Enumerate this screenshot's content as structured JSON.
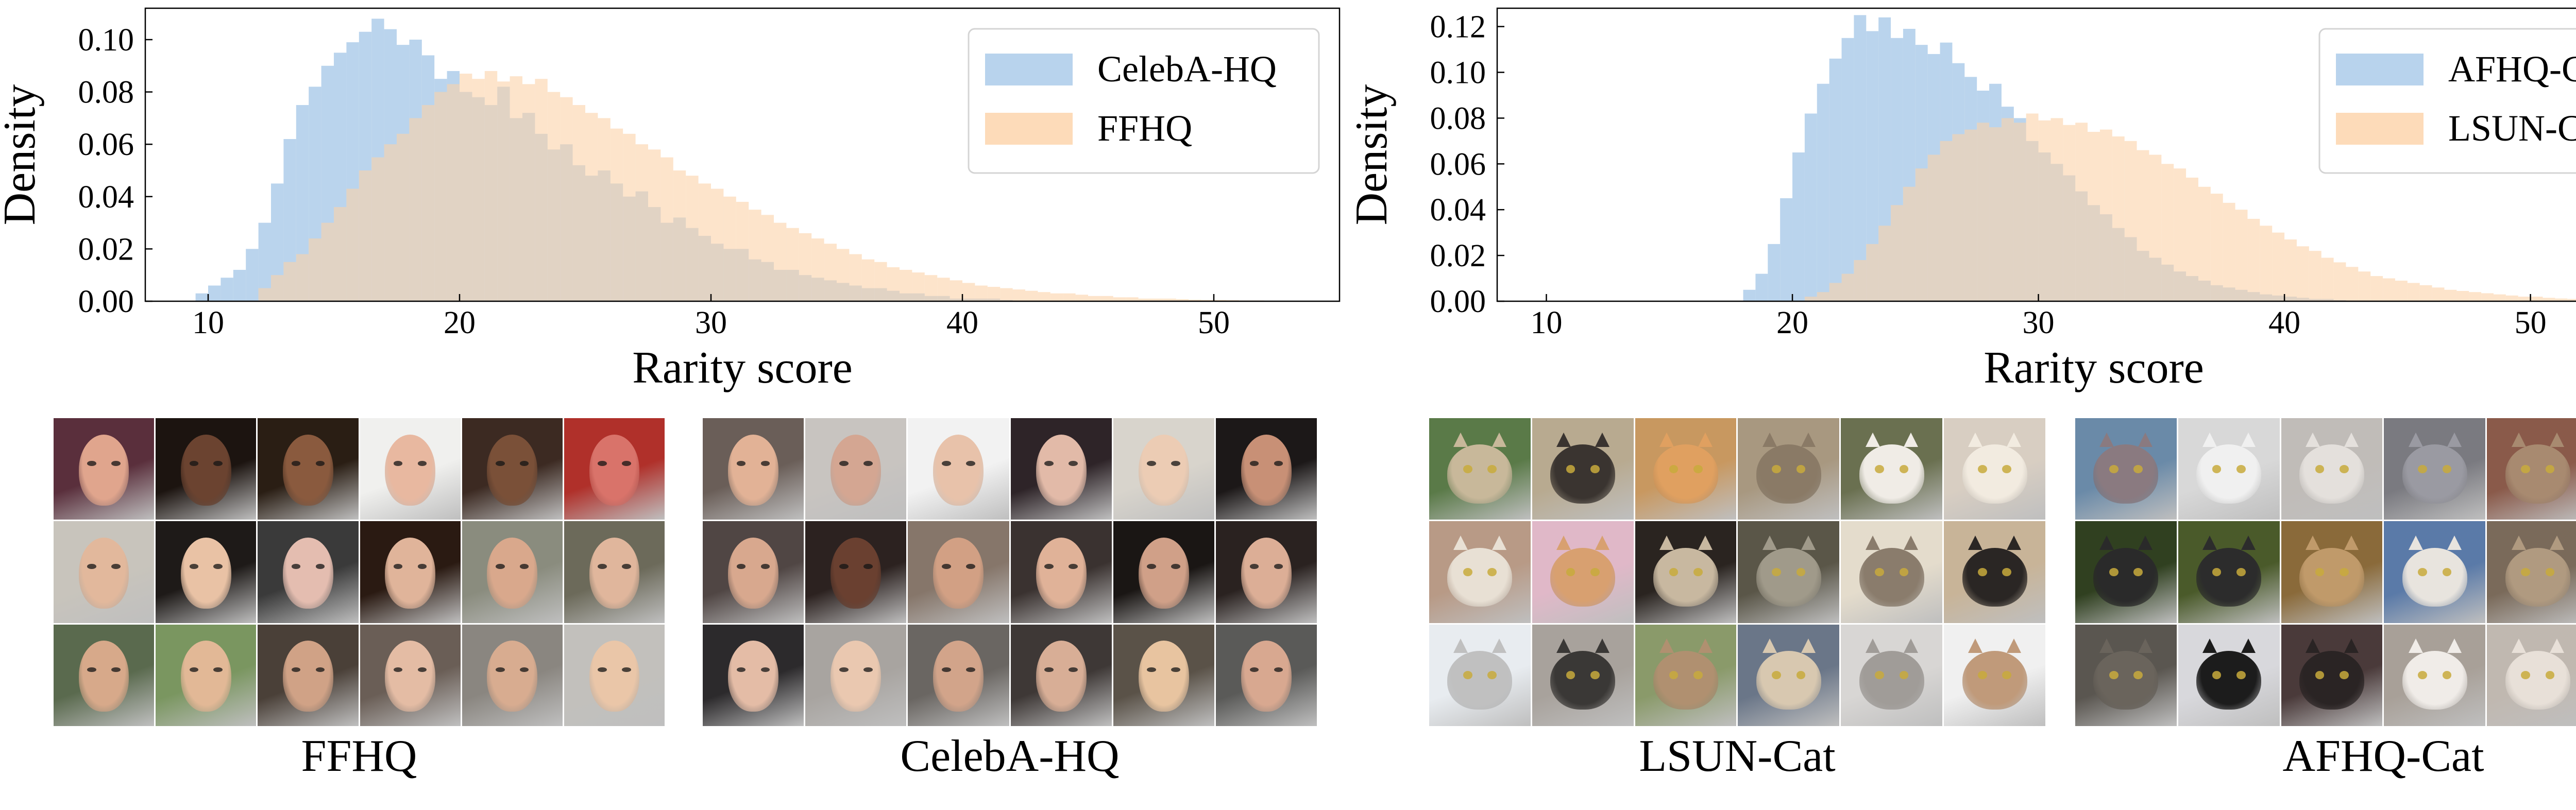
{
  "chart_data": [
    {
      "type": "histogram",
      "xlabel": "Rarity score",
      "ylabel": "Density",
      "xlim": [
        7.5,
        55
      ],
      "ylim": [
        0,
        0.112
      ],
      "xticks": [
        "10",
        "20",
        "30",
        "40",
        "50"
      ],
      "yticks": [
        "0.00",
        "0.02",
        "0.04",
        "0.06",
        "0.08",
        "0.10"
      ],
      "legend_position": "top-right",
      "grid": false,
      "bin_width": 0.5,
      "series": [
        {
          "name": "CelebA-HQ",
          "color": "#a6c8e8",
          "bin_start": 9.5,
          "values": [
            0.003,
            0.006,
            0.009,
            0.012,
            0.02,
            0.03,
            0.045,
            0.062,
            0.075,
            0.082,
            0.09,
            0.095,
            0.099,
            0.103,
            0.108,
            0.104,
            0.098,
            0.1,
            0.094,
            0.085,
            0.088,
            0.08,
            0.078,
            0.075,
            0.082,
            0.07,
            0.072,
            0.064,
            0.058,
            0.06,
            0.052,
            0.048,
            0.05,
            0.045,
            0.04,
            0.042,
            0.036,
            0.03,
            0.032,
            0.028,
            0.025,
            0.022,
            0.02,
            0.02,
            0.016,
            0.015,
            0.012,
            0.012,
            0.01,
            0.009,
            0.008,
            0.007,
            0.006,
            0.005,
            0.005,
            0.004,
            0.003,
            0.003,
            0.002,
            0.002,
            0.001,
            0.001,
            0.001,
            0.001,
            0.0005
          ]
        },
        {
          "name": "FFHQ",
          "color": "#fcd2a8",
          "bin_start": 12.0,
          "values": [
            0.005,
            0.01,
            0.015,
            0.018,
            0.024,
            0.03,
            0.036,
            0.043,
            0.05,
            0.055,
            0.06,
            0.064,
            0.07,
            0.075,
            0.08,
            0.083,
            0.087,
            0.085,
            0.088,
            0.084,
            0.086,
            0.083,
            0.085,
            0.08,
            0.078,
            0.075,
            0.072,
            0.07,
            0.066,
            0.064,
            0.06,
            0.058,
            0.055,
            0.05,
            0.048,
            0.045,
            0.043,
            0.04,
            0.038,
            0.035,
            0.033,
            0.03,
            0.028,
            0.026,
            0.024,
            0.022,
            0.02,
            0.018,
            0.016,
            0.015,
            0.013,
            0.012,
            0.011,
            0.01,
            0.009,
            0.008,
            0.007,
            0.006,
            0.0055,
            0.005,
            0.0045,
            0.004,
            0.0035,
            0.003,
            0.003,
            0.0025,
            0.002,
            0.002,
            0.0015,
            0.0015,
            0.001,
            0.001,
            0.001,
            0.0008,
            0.0006,
            0.0005,
            0.0005,
            0.0004,
            0.0003,
            0.0003,
            0.0002,
            0.0002,
            0.0001,
            0.0001
          ]
        }
      ]
    },
    {
      "type": "histogram",
      "xlabel": "Rarity score",
      "ylabel": "Density",
      "xlim": [
        8,
        56.5
      ],
      "ylim": [
        0,
        0.128
      ],
      "xticks": [
        "10",
        "20",
        "30",
        "40",
        "50"
      ],
      "yticks": [
        "0.00",
        "0.02",
        "0.04",
        "0.06",
        "0.08",
        "0.10",
        "0.12"
      ],
      "legend_position": "top-right",
      "grid": false,
      "bin_width": 0.5,
      "series": [
        {
          "name": "AFHQ-Cat",
          "color": "#a6c8e8",
          "bin_start": 18.0,
          "values": [
            0.005,
            0.012,
            0.025,
            0.045,
            0.065,
            0.082,
            0.095,
            0.106,
            0.115,
            0.125,
            0.118,
            0.124,
            0.115,
            0.119,
            0.112,
            0.108,
            0.113,
            0.104,
            0.098,
            0.092,
            0.095,
            0.085,
            0.08,
            0.07,
            0.065,
            0.06,
            0.055,
            0.048,
            0.042,
            0.038,
            0.032,
            0.028,
            0.022,
            0.019,
            0.016,
            0.013,
            0.011,
            0.009,
            0.007,
            0.006,
            0.005,
            0.004,
            0.003,
            0.0025,
            0.002,
            0.0015,
            0.001,
            0.001,
            0.0005
          ]
        },
        {
          "name": "LSUN-Cat",
          "color": "#fcd2a8",
          "bin_start": 20.5,
          "values": [
            0.002,
            0.004,
            0.008,
            0.012,
            0.018,
            0.025,
            0.033,
            0.042,
            0.05,
            0.058,
            0.064,
            0.07,
            0.073,
            0.075,
            0.078,
            0.076,
            0.08,
            0.078,
            0.082,
            0.079,
            0.08,
            0.077,
            0.078,
            0.074,
            0.075,
            0.072,
            0.07,
            0.066,
            0.064,
            0.06,
            0.058,
            0.054,
            0.05,
            0.047,
            0.043,
            0.04,
            0.036,
            0.033,
            0.03,
            0.027,
            0.024,
            0.022,
            0.019,
            0.017,
            0.015,
            0.013,
            0.011,
            0.01,
            0.009,
            0.008,
            0.007,
            0.006,
            0.005,
            0.0045,
            0.004,
            0.0035,
            0.003,
            0.0025,
            0.002,
            0.002,
            0.0015,
            0.0012,
            0.001,
            0.001,
            0.0008,
            0.0006,
            0.0005,
            0.0004,
            0.0003
          ]
        }
      ]
    }
  ],
  "image_grids": [
    {
      "label": "FFHQ"
    },
    {
      "label": "CelebA-HQ"
    },
    {
      "label": "LSUN-Cat"
    },
    {
      "label": "AFHQ-Cat"
    }
  ]
}
